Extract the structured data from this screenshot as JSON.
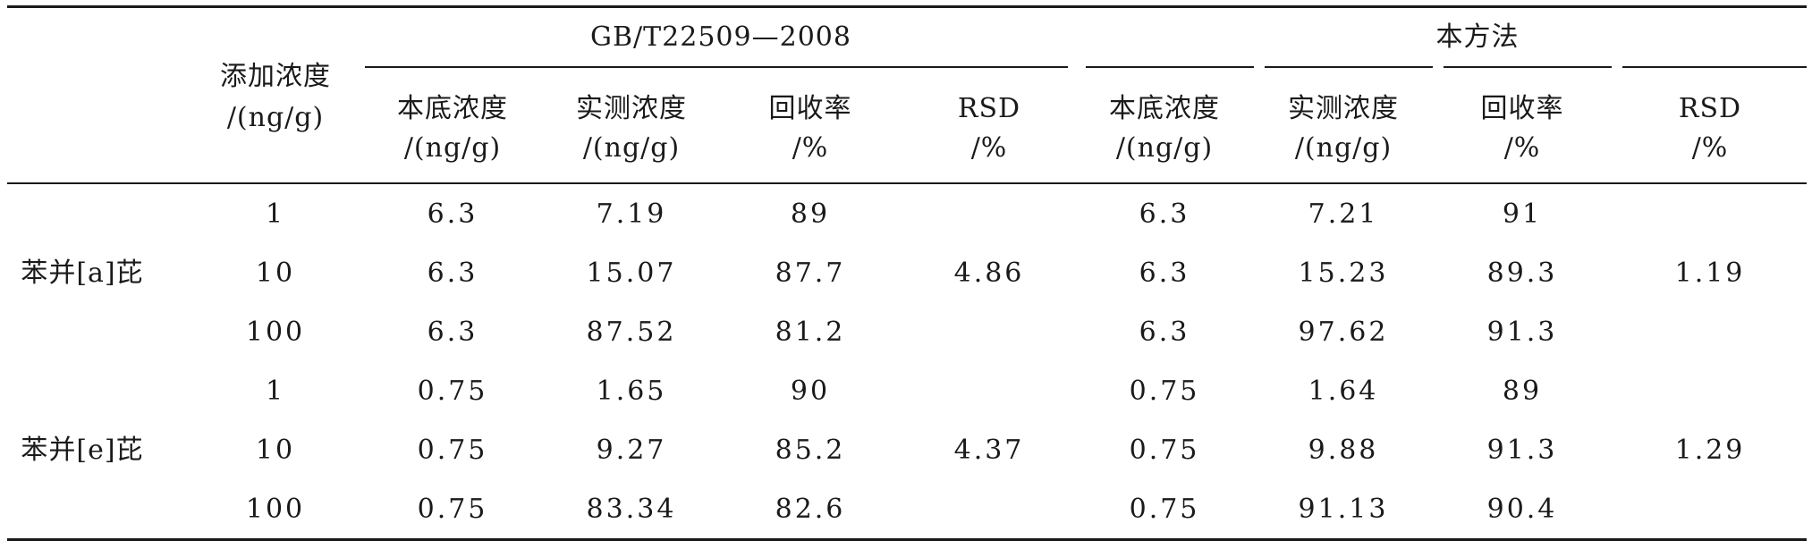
{
  "table": {
    "group_headers": {
      "gb": "GB/T22509—2008",
      "method": "本方法"
    },
    "col_add": [
      "添加浓度",
      "/(ng/g)"
    ],
    "sub_headers": [
      [
        "本底浓度",
        "/(ng/g)"
      ],
      [
        "实测浓度",
        "/(ng/g)"
      ],
      [
        "回收率",
        "/%"
      ],
      [
        "RSD",
        "/%"
      ],
      [
        "本底浓度",
        "/(ng/g)"
      ],
      [
        "实测浓度",
        "/(ng/g)"
      ],
      [
        "回收率",
        "/%"
      ],
      [
        "RSD",
        "/%"
      ]
    ],
    "compounds": [
      {
        "name": "苯并[a]芘",
        "gb_rsd": "4.86",
        "method_rsd": "1.19",
        "rows": [
          {
            "add": "1",
            "gb": [
              "6.3",
              "7.19",
              "89"
            ],
            "m": [
              "6.3",
              "7.21",
              "91"
            ]
          },
          {
            "add": "10",
            "gb": [
              "6.3",
              "15.07",
              "87.7"
            ],
            "m": [
              "6.3",
              "15.23",
              "89.3"
            ]
          },
          {
            "add": "100",
            "gb": [
              "6.3",
              "87.52",
              "81.2"
            ],
            "m": [
              "6.3",
              "97.62",
              "91.3"
            ]
          }
        ]
      },
      {
        "name": "苯并[e]芘",
        "gb_rsd": "4.37",
        "method_rsd": "1.29",
        "rows": [
          {
            "add": "1",
            "gb": [
              "0.75",
              "1.65",
              "90"
            ],
            "m": [
              "0.75",
              "1.64",
              "89"
            ]
          },
          {
            "add": "10",
            "gb": [
              "0.75",
              "9.27",
              "85.2"
            ],
            "m": [
              "0.75",
              "9.88",
              "91.3"
            ]
          },
          {
            "add": "100",
            "gb": [
              "0.75",
              "83.34",
              "82.6"
            ],
            "m": [
              "0.75",
              "91.13",
              "90.4"
            ]
          }
        ]
      }
    ]
  }
}
